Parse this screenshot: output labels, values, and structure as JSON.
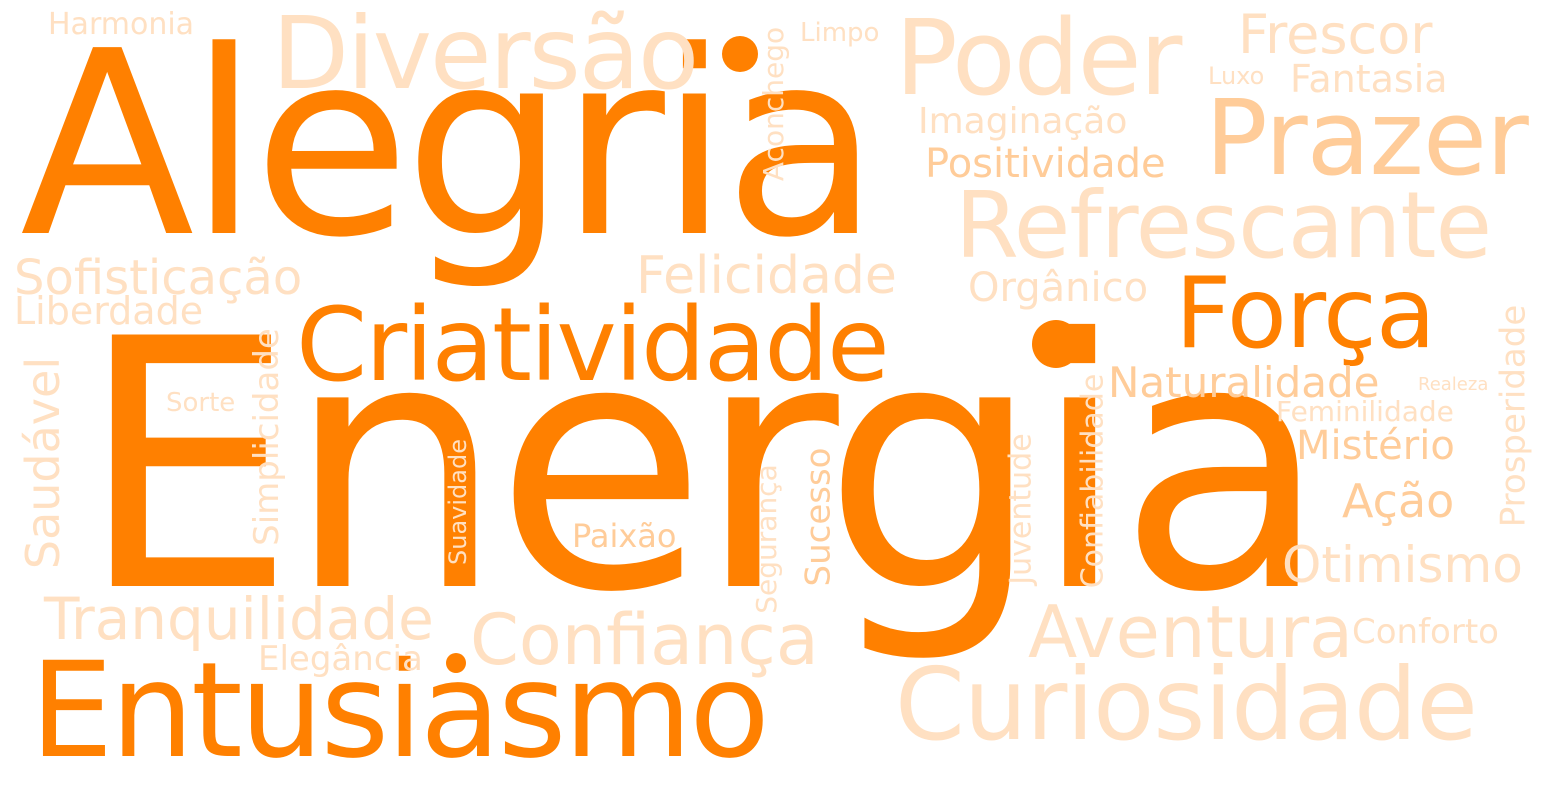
{
  "colors": {
    "strong": "#ff8000",
    "medium": "#ffcc99",
    "light": "#ffe0c2"
  },
  "words": {
    "alegria": "Alegria",
    "energia": "Energia",
    "entusiasmo": "Entusiasmo",
    "criatividade": "Criatividade",
    "forca": "Força",
    "diversao": "Diversão",
    "poder": "Poder",
    "prazer": "Prazer",
    "refrescante": "Refrescante",
    "curiosidade": "Curiosidade",
    "aventura": "Aventura",
    "confianca": "Confiança",
    "tranquilidade": "Tranquilidade",
    "sofisticacao": "Sofisticação",
    "felicidade": "Felicidade",
    "frescor": "Frescor",
    "fantasia": "Fantasia",
    "luxo": "Luxo",
    "imaginacao": "Imaginação",
    "positividade": "Positividade",
    "organico": "Orgânico",
    "harmonia": "Harmonia",
    "limpo": "Limpo",
    "aconchego": "Aconchego",
    "liberdade": "Liberdade",
    "saudavel": "Saudável",
    "sorte": "Sorte",
    "simplicidade": "Simplicidade",
    "suavidade": "Suavidade",
    "paixao": "Paixão",
    "seguranca": "Segurança",
    "sucesso": "Sucesso",
    "juventude": "Juventude",
    "confiabilidade": "Confiabilidade",
    "naturalidade": "Naturalidade",
    "realeza": "Realeza",
    "feminilidade": "Feminilidade",
    "misterio": "Mistério",
    "acao": "Ação",
    "otimismo": "Otimismo",
    "prosperidade": "Prosperidade",
    "conforto": "Conforto",
    "elegancia": "Elegância"
  }
}
